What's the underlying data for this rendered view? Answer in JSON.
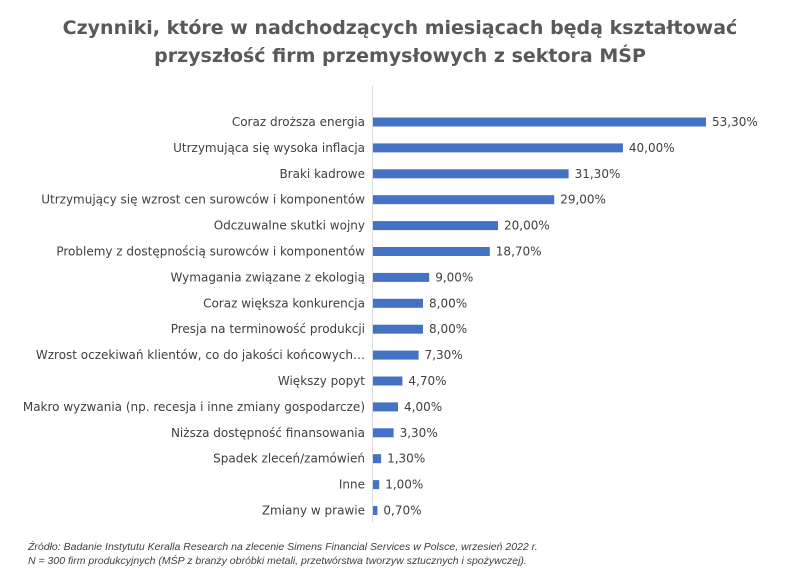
{
  "chart_data": {
    "type": "bar",
    "orientation": "horizontal",
    "title_lines": [
      "Czynniki, które w nadchodzących miesiącach będą kształtować",
      "przyszłość firm przemysłowych z sektora MŚP"
    ],
    "categories": [
      "Coraz droższa energia",
      "Utrzymująca się wysoka inflacja",
      "Braki kadrowe",
      "Utrzymujący się wzrost cen surowców i komponentów",
      "Odczuwalne skutki wojny",
      "Problemy z dostępnością surowców i komponentów",
      "Wymagania związane z ekologią",
      "Coraz większa konkurencja",
      "Presja na terminowość produkcji",
      "Wzrost oczekiwań klientów, co do jakości końcowych…",
      "Większy popyt",
      "Makro wyzwania (np. recesja i inne zmiany gospodarcze)",
      "Niższa dostępność finansowania",
      "Spadek zleceń/zamówień",
      "Inne",
      "Zmiany w prawie"
    ],
    "values": [
      53.3,
      40.0,
      31.3,
      29.0,
      20.0,
      18.7,
      9.0,
      8.0,
      8.0,
      7.3,
      4.7,
      4.0,
      3.3,
      1.3,
      1.0,
      0.7
    ],
    "value_labels": [
      "53,30%",
      "40,00%",
      "31,30%",
      "29,00%",
      "20,00%",
      "18,70%",
      "9,00%",
      "8,00%",
      "8,00%",
      "7,30%",
      "4,70%",
      "4,00%",
      "3,30%",
      "1,30%",
      "1,00%",
      "0,70%"
    ],
    "bar_color": "#4472C4",
    "axis_color": "#D9D9D9",
    "grid": false,
    "legend": "none"
  },
  "source": {
    "line1": "Źródło: Badanie Instytutu Keralla Research na zlecenie Simens Financial Services w Polsce, wrzesień 2022 r.",
    "line2": "N = 300 firm produkcyjnych (MŚP z branży obróbki metali,  przetwórstwa tworzyw sztucznych i spożywczej)."
  }
}
